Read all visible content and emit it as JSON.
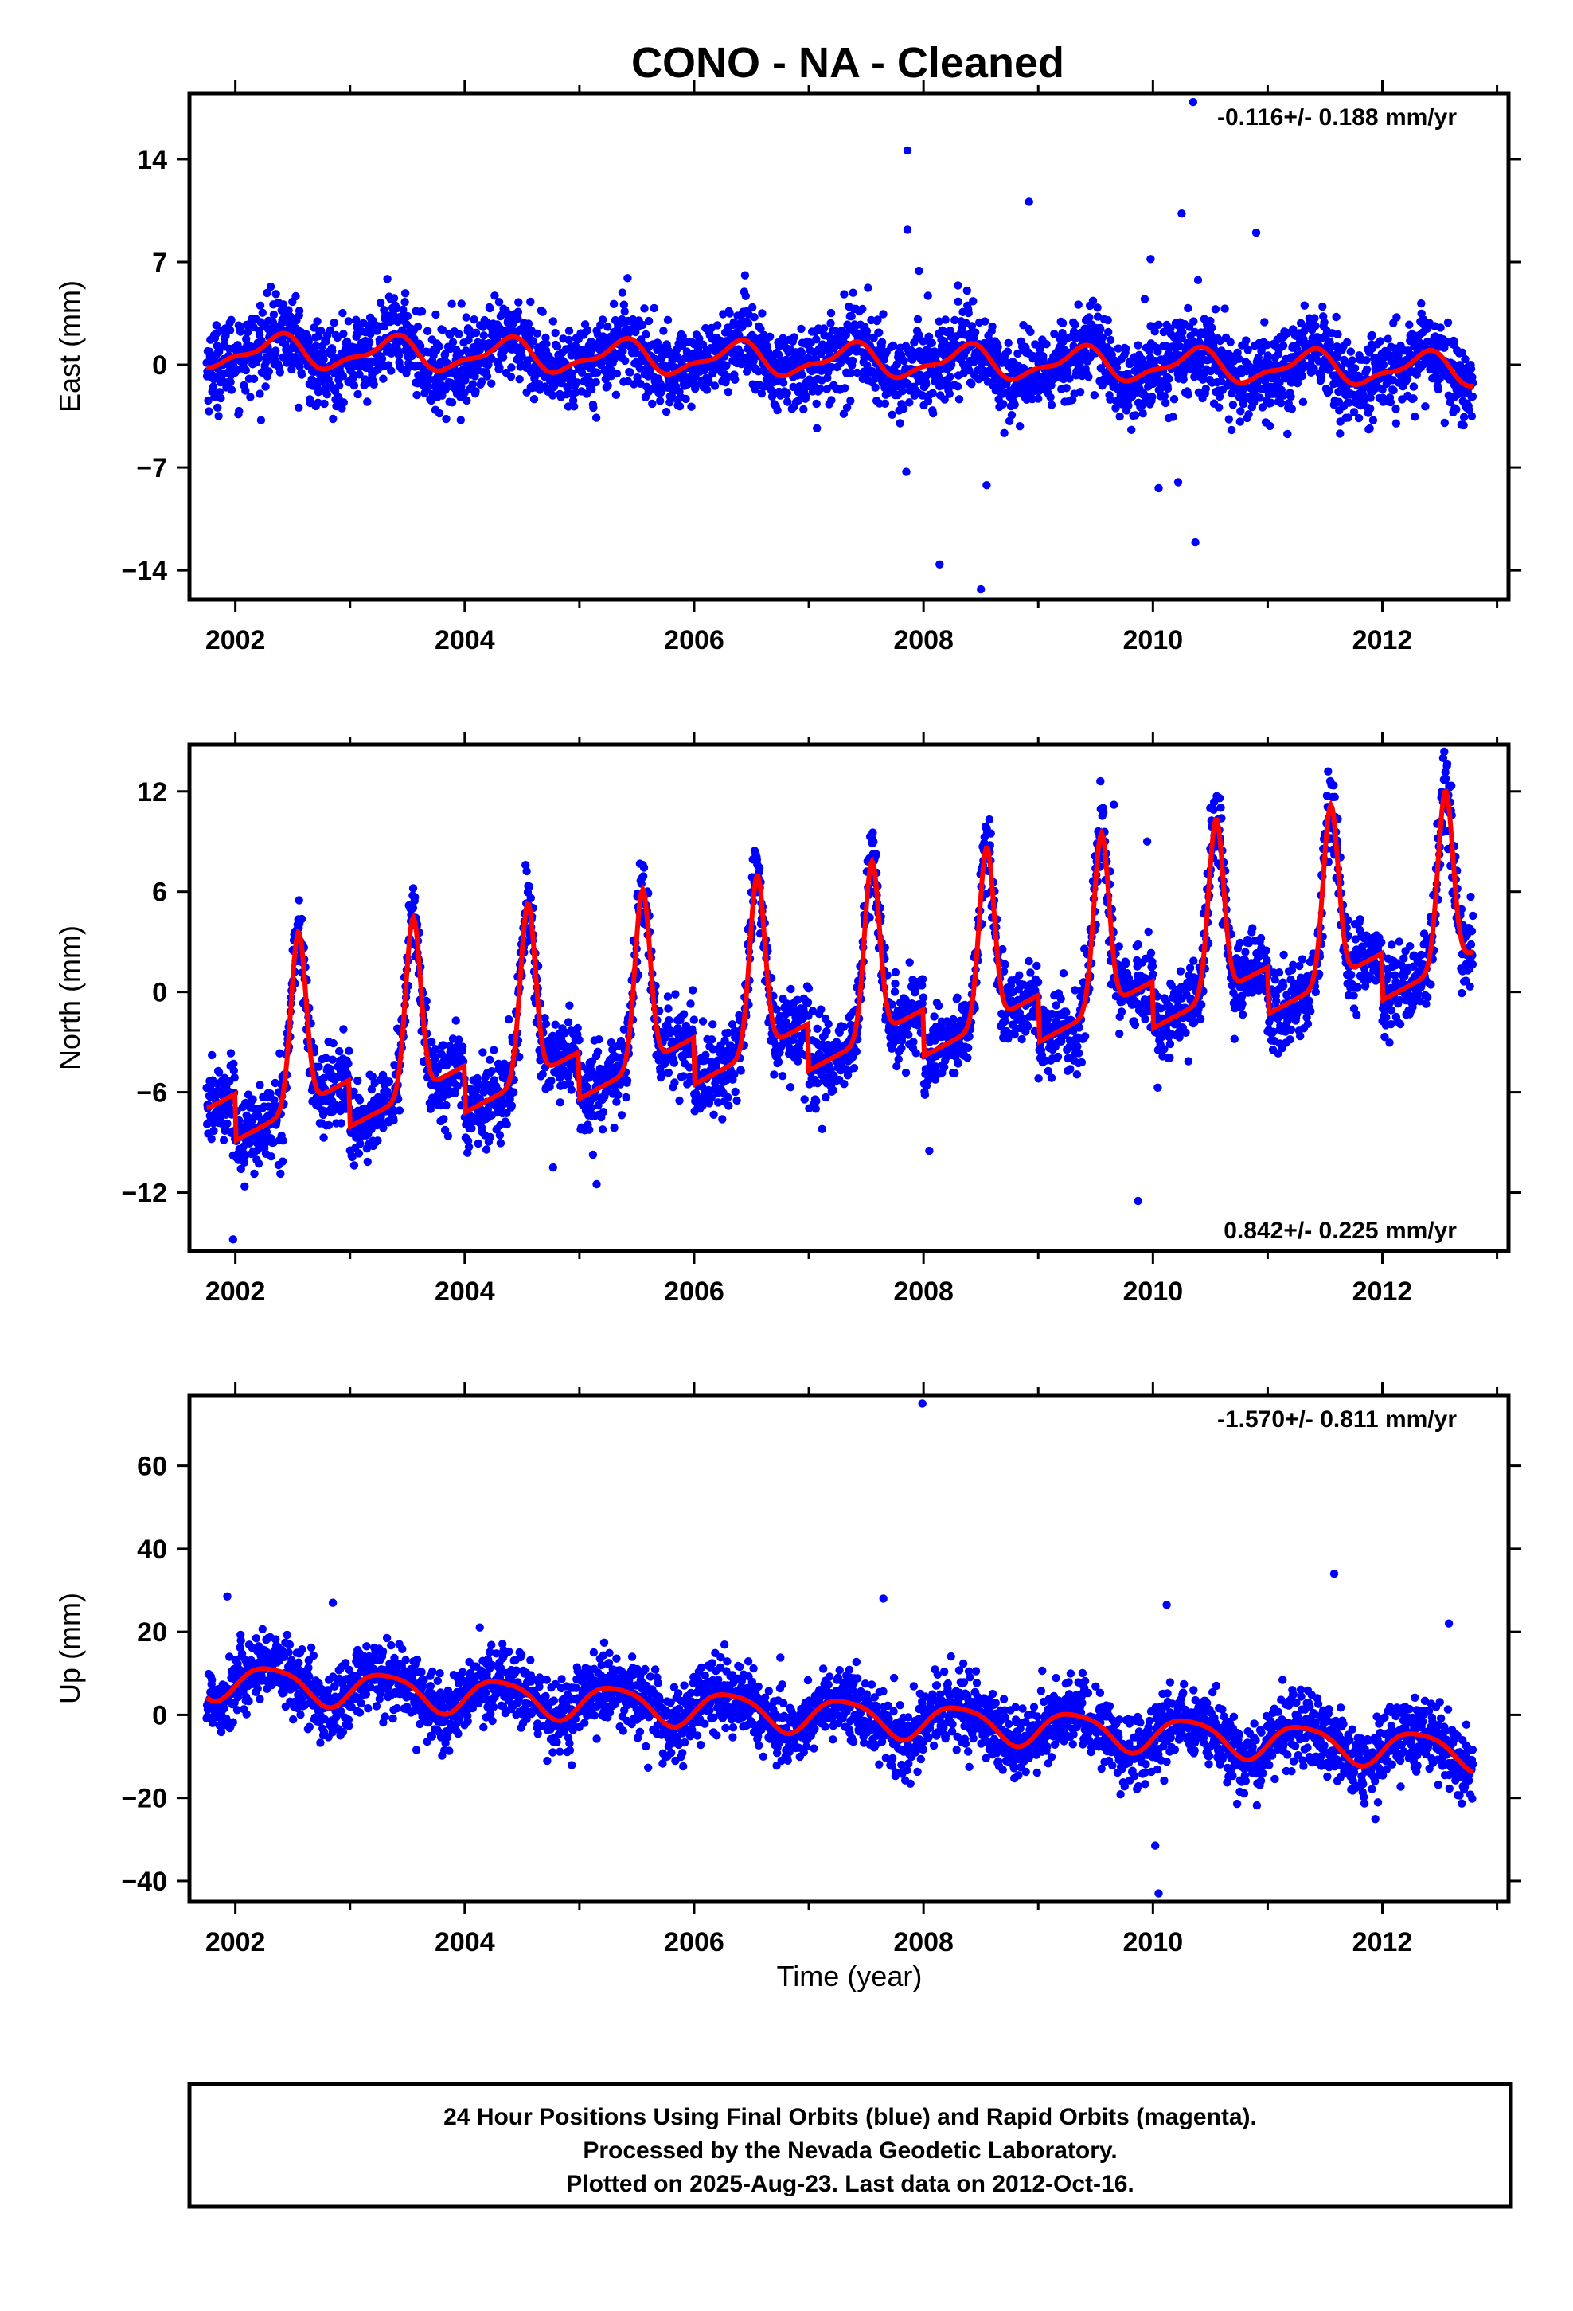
{
  "figure": {
    "title": "CONO  - NA - Cleaned",
    "xlabel": "Time (year)"
  },
  "chart_data": [
    {
      "type": "scatter",
      "panel": "east",
      "ylabel": "East (mm)",
      "rate_label": "-0.116+/- 0.188 mm/yr",
      "xlim": [
        2001.6,
        2013.1
      ],
      "ylim": [
        -16,
        18.5
      ],
      "xticks": [
        2002,
        2004,
        2006,
        2008,
        2010,
        2012
      ],
      "yticks": [
        -14,
        -7,
        0,
        7,
        14
      ],
      "x_start": 2001.75,
      "x_end": 2012.79,
      "trend": {
        "value_at_2002": 0.9,
        "slope_mm_per_yr": -0.116
      },
      "seasonal": {
        "annual_amplitude": 1.0,
        "annual_phase": 0.85,
        "semiannual_amplitude": 0.4,
        "semiannual_phase": 2.1
      },
      "noise_sd": 1.4,
      "series": [
        {
          "color": "#0000ff",
          "kind": "points",
          "values_desc": "daily positions"
        },
        {
          "color": "#ff0000",
          "kind": "line",
          "values_desc": "model fit"
        }
      ],
      "outliers": [
        [
          2007.86,
          14.6
        ],
        [
          2008.92,
          11.1
        ],
        [
          2010.35,
          17.9
        ],
        [
          2010.9,
          9.0
        ],
        [
          2010.25,
          10.3
        ],
        [
          2007.86,
          9.2
        ],
        [
          2008.14,
          -13.6
        ],
        [
          2008.5,
          -15.3
        ],
        [
          2008.55,
          -8.2
        ],
        [
          2007.85,
          -7.3
        ],
        [
          2010.37,
          -12.1
        ],
        [
          2010.05,
          -8.4
        ],
        [
          2010.22,
          -8.0
        ],
        [
          2007.96,
          6.4
        ],
        [
          2008.3,
          5.4
        ],
        [
          2009.98,
          7.2
        ]
      ]
    },
    {
      "type": "scatter",
      "panel": "north",
      "ylabel": "North (mm)",
      "rate_label": "0.842+/- 0.225 mm/yr",
      "xlim": [
        2001.6,
        2013.1
      ],
      "ylim": [
        -15.5,
        14.8
      ],
      "xticks": [
        2002,
        2004,
        2006,
        2008,
        2010,
        2012
      ],
      "yticks": [
        -12,
        -6,
        0,
        6,
        12
      ],
      "x_start": 2001.75,
      "x_end": 2012.79,
      "trend": {
        "value_at_2002": -4.1,
        "slope_mm_per_yr": 0.842
      },
      "seasonal": {
        "annual_amplitude": 4.3,
        "annual_phase": 0.0,
        "semiannual_amplitude": 1.6,
        "semiannual_phase": 0.0
      },
      "noise_sd": 1.2,
      "series": [
        {
          "color": "#0000ff",
          "kind": "points",
          "values_desc": "daily positions"
        },
        {
          "color": "#ff0000",
          "kind": "line",
          "values_desc": "model fit"
        }
      ],
      "outliers": [
        [
          2009.87,
          -12.5
        ],
        [
          2008.05,
          -9.5
        ],
        [
          2004.77,
          -10.5
        ],
        [
          2005.15,
          -11.5
        ],
        [
          2001.98,
          -14.8
        ],
        [
          2009.95,
          9.0
        ],
        [
          2009.66,
          11.2
        ],
        [
          2012.53,
          14.0
        ],
        [
          2003.55,
          6.2
        ],
        [
          2010.5,
          11.0
        ]
      ]
    },
    {
      "type": "scatter",
      "panel": "up",
      "ylabel": "Up (mm)",
      "rate_label": "-1.570+/- 0.811 mm/yr",
      "xlim": [
        2001.6,
        2013.1
      ],
      "ylim": [
        -45,
        77
      ],
      "xticks": [
        2002,
        2004,
        2006,
        2008,
        2010,
        2012
      ],
      "yticks": [
        -40,
        -20,
        0,
        20,
        40,
        60
      ],
      "x_start": 2001.75,
      "x_end": 2012.79,
      "trend": {
        "value_at_2002": 8.0,
        "slope_mm_per_yr": -1.57
      },
      "seasonal": {
        "annual_amplitude": 4.2,
        "annual_phase": 1.2,
        "semiannual_amplitude": 0.8,
        "semiannual_phase": 0.5
      },
      "noise_sd": 4.3,
      "series": [
        {
          "color": "#0000ff",
          "kind": "points",
          "values_desc": "daily positions"
        },
        {
          "color": "#ff0000",
          "kind": "line",
          "values_desc": "model fit"
        }
      ],
      "outliers": [
        [
          2007.99,
          75.0
        ],
        [
          2011.58,
          34.0
        ],
        [
          2010.12,
          26.5
        ],
        [
          2010.02,
          -31.5
        ],
        [
          2010.05,
          -43.0
        ],
        [
          2012.58,
          22.0
        ],
        [
          2001.93,
          28.5
        ],
        [
          2002.85,
          27.0
        ],
        [
          2007.65,
          28.0
        ]
      ]
    }
  ],
  "footer": {
    "line1": "24 Hour Positions Using Final Orbits (blue) and Rapid Orbits (magenta).",
    "line2": "Processed by the Nevada Geodetic Laboratory.",
    "line3": "Plotted on 2025-Aug-23. Last data on 2012-Oct-16."
  }
}
